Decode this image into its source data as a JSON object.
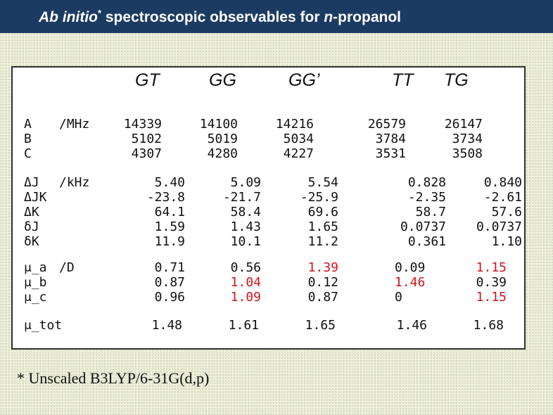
{
  "title": {
    "part1": "Ab initio",
    "star": "*",
    "part2": " spectroscopic observables for ",
    "part3": "n",
    "part4": "-propanol"
  },
  "conformers": [
    "GT",
    "GG",
    "GG’",
    "TT",
    "TG"
  ],
  "rotational": {
    "labels": [
      "A",
      "B",
      "C"
    ],
    "unit": "/MHz",
    "values": [
      [
        "14339",
        "5102",
        "4307"
      ],
      [
        "14100",
        "5019",
        "4280"
      ],
      [
        "14216",
        "5034",
        "4227"
      ],
      [
        "26579",
        "3784",
        "3531"
      ],
      [
        "26147",
        "3734",
        "3508"
      ]
    ]
  },
  "distortion": {
    "labels": [
      "ΔJ",
      "ΔJK",
      "ΔK",
      "δJ",
      "δK"
    ],
    "unit": "/kHz",
    "values": [
      [
        "5.40",
        "-23.8",
        "64.1",
        "1.59",
        "11.9"
      ],
      [
        "5.09",
        "-21.7",
        "58.4",
        "1.43",
        "10.1"
      ],
      [
        "5.54",
        "-25.9",
        "69.6",
        "1.65",
        "11.2"
      ],
      [
        "0.828",
        "-2.35",
        "58.7",
        "0.0737",
        "0.361"
      ],
      [
        "0.840",
        "-2.61",
        "57.6",
        "0.0737",
        "1.10"
      ]
    ]
  },
  "dipole": {
    "labels": [
      "μ_a",
      "μ_b",
      "μ_c"
    ],
    "unit": "/D",
    "values": [
      [
        {
          "v": "0.71",
          "red": false
        },
        {
          "v": "0.87",
          "red": false
        },
        {
          "v": "0.96",
          "red": false
        }
      ],
      [
        {
          "v": "0.56",
          "red": false
        },
        {
          "v": "1.04",
          "red": true
        },
        {
          "v": "1.09",
          "red": true
        }
      ],
      [
        {
          "v": "1.39",
          "red": true
        },
        {
          "v": "0.12",
          "red": false
        },
        {
          "v": "0.87",
          "red": false
        }
      ],
      [
        {
          "v": "0.09",
          "red": false
        },
        {
          "v": "1.46",
          "red": true
        },
        {
          "v": "0",
          "red": false
        }
      ],
      [
        {
          "v": "1.15",
          "red": true
        },
        {
          "v": "0.39",
          "red": false
        },
        {
          "v": "1.15",
          "red": true
        }
      ]
    ]
  },
  "total": {
    "label": "μ_tot",
    "values": [
      "1.48",
      "1.61",
      "1.65",
      "1.46",
      "1.68"
    ]
  },
  "footnote": "* Unscaled B3LYP/6-31G(d,p)",
  "colors": {
    "titlebar": "#1c3b63",
    "highlight": "#d4141a"
  }
}
